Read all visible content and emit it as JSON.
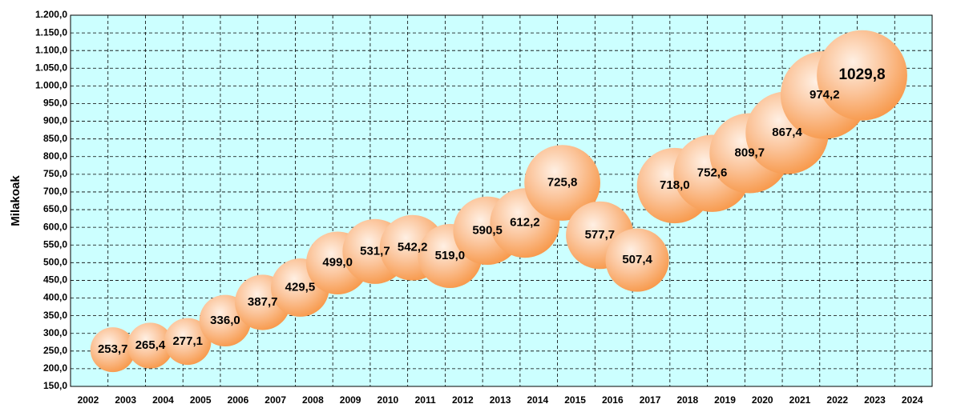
{
  "chart_data": {
    "type": "bubble",
    "y_label": "Milakoak",
    "x": [
      2003,
      2004,
      2005,
      2006,
      2007,
      2008,
      2009,
      2010,
      2011,
      2012,
      2013,
      2014,
      2015,
      2016,
      2017,
      2018,
      2019,
      2020,
      2021,
      2022,
      2023
    ],
    "series": [
      {
        "color": "#f79646",
        "values": [
          253.7,
          265.4,
          277.1,
          336.0,
          387.7,
          429.5,
          499.0,
          531.7,
          542.2,
          519.0,
          590.5,
          612.2,
          725.8,
          577.7,
          507.4,
          718.0,
          752.6,
          809.7,
          867.4,
          974.2,
          1029.8
        ],
        "value_labels": [
          "253,7",
          "265,4",
          "277,1",
          "336,0",
          "387,7",
          "429,5",
          "499,0",
          "531,7",
          "542,2",
          "519,0",
          "590,5",
          "612,2",
          "725,8",
          "577,7",
          "507,4",
          "718,0",
          "752,6",
          "809,7",
          "867,4",
          "974,2",
          "1029,8"
        ]
      }
    ],
    "xlim": [
      2002,
      2025
    ],
    "xticks": [
      2002,
      2003,
      2004,
      2005,
      2006,
      2007,
      2008,
      2009,
      2010,
      2011,
      2012,
      2013,
      2014,
      2015,
      2016,
      2017,
      2018,
      2019,
      2020,
      2021,
      2022,
      2023,
      2024
    ],
    "ylim": [
      150,
      1200
    ],
    "yticks": [
      {
        "value": 150,
        "label": "150,0"
      },
      {
        "value": 200,
        "label": "200,0"
      },
      {
        "value": 250,
        "label": "250,0"
      },
      {
        "value": 300,
        "label": "300,0"
      },
      {
        "value": 350,
        "label": "350,0"
      },
      {
        "value": 400,
        "label": "400,0"
      },
      {
        "value": 450,
        "label": "450,0"
      },
      {
        "value": 500,
        "label": "500,0"
      },
      {
        "value": 550,
        "label": "550,0"
      },
      {
        "value": 600,
        "label": "600,0"
      },
      {
        "value": 650,
        "label": "650,0"
      },
      {
        "value": 700,
        "label": "700,0"
      },
      {
        "value": 750,
        "label": "750,0"
      },
      {
        "value": 800,
        "label": "800,0"
      },
      {
        "value": 850,
        "label": "850,0"
      },
      {
        "value": 900,
        "label": "900,0"
      },
      {
        "value": 950,
        "label": "950,0"
      },
      {
        "value": 1000,
        "label": "1.000,0"
      },
      {
        "value": 1050,
        "label": "1.050,0"
      },
      {
        "value": 1100,
        "label": "1.100,0"
      },
      {
        "value": 1150,
        "label": "1.150,0"
      },
      {
        "value": 1200,
        "label": "1.200,0"
      }
    ],
    "grid": true,
    "background": "#ccffff"
  }
}
